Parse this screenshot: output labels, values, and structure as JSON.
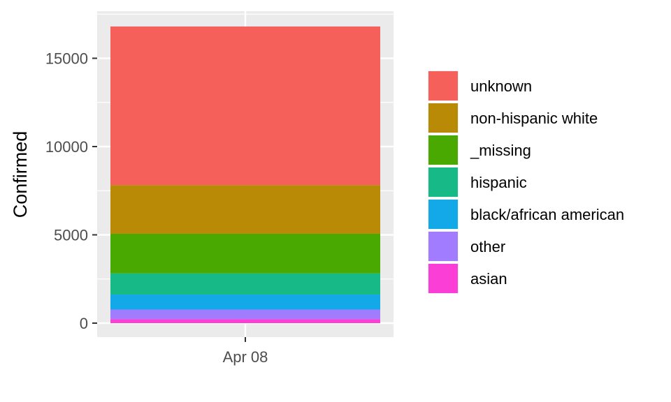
{
  "chart_data": {
    "type": "bar",
    "stacked": true,
    "categories": [
      "Apr 08"
    ],
    "ylabel": "Confirmed",
    "xlabel": "",
    "ylim": [
      0,
      16800
    ],
    "yticks": [
      0,
      5000,
      10000,
      15000
    ],
    "grid": true,
    "legend_position": "right",
    "series": [
      {
        "name": "asian",
        "color": "#FB3FD6",
        "values": [
          230
        ]
      },
      {
        "name": "other",
        "color": "#A27CFF",
        "values": [
          540
        ]
      },
      {
        "name": "black/african american",
        "color": "#13A9E9",
        "values": [
          850
        ]
      },
      {
        "name": "hispanic",
        "color": "#17B987",
        "values": [
          1200
        ]
      },
      {
        "name": "_missing",
        "color": "#49A900",
        "values": [
          2240
        ]
      },
      {
        "name": "non-hispanic white",
        "color": "#B88A05",
        "values": [
          2760
        ]
      },
      {
        "name": "unknown",
        "color": "#F5605B",
        "values": [
          8980
        ]
      }
    ]
  }
}
